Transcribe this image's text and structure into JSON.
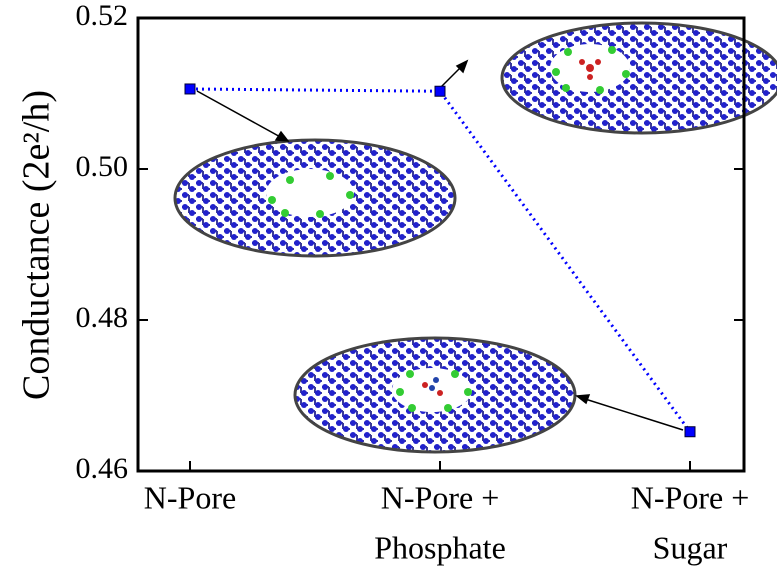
{
  "chart_data": {
    "type": "line",
    "y_label": "Conductance (2e²/h)",
    "categories": [
      [
        "N-Pore"
      ],
      [
        "N-Pore +",
        "Phosphate"
      ],
      [
        "N-Pore +",
        "Sugar"
      ]
    ],
    "series": [
      {
        "color": "#0000ff",
        "values": [
          0.5106,
          0.5103,
          0.4652
        ]
      }
    ],
    "ylim": [
      0.46,
      0.52
    ],
    "yticks": [
      0.46,
      0.48,
      {
        "value": 0.5,
        "label": "0.50"
      },
      0.52
    ]
  }
}
